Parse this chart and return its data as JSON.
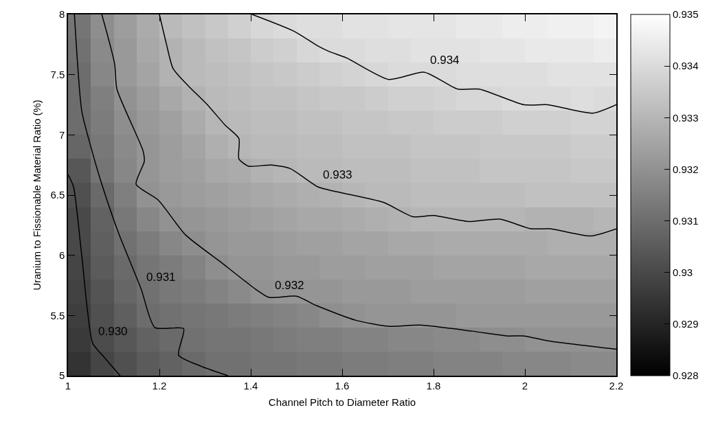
{
  "chart_data": {
    "type": "heatmap",
    "xlabel": "Channel Pitch to Diameter Ratio",
    "ylabel": "Uranium to Fissionable Material Ratio (%)",
    "x": [
      1.025,
      1.075,
      1.125,
      1.175,
      1.225,
      1.275,
      1.325,
      1.375,
      1.425,
      1.475,
      1.525,
      1.575,
      1.625,
      1.675,
      1.725,
      1.775,
      1.825,
      1.875,
      1.925,
      1.975,
      2.025,
      2.075,
      2.125,
      2.175
    ],
    "y": [
      7.9,
      7.7,
      7.5,
      7.3,
      7.1,
      6.9,
      6.7,
      6.5,
      6.3,
      6.1,
      5.9,
      5.7,
      5.5,
      5.3,
      5.1
    ],
    "cells": [
      [
        0.9312,
        0.9319,
        0.9323,
        0.9327,
        0.9331,
        0.9333,
        0.9335,
        0.9337,
        0.9339,
        0.934,
        0.9341,
        0.9341,
        0.9342,
        0.9342,
        0.9343,
        0.9343,
        0.9343,
        0.9344,
        0.9344,
        0.9345,
        0.9345,
        0.9346,
        0.9346,
        0.9347
      ],
      [
        0.9311,
        0.9318,
        0.9322,
        0.9326,
        0.9329,
        0.9331,
        0.9333,
        0.9334,
        0.9336,
        0.9337,
        0.9339,
        0.934,
        0.934,
        0.9341,
        0.9341,
        0.9342,
        0.9342,
        0.9342,
        0.9343,
        0.9343,
        0.9344,
        0.9344,
        0.9344,
        0.9345
      ],
      [
        0.931,
        0.9317,
        0.9322,
        0.9325,
        0.9329,
        0.9331,
        0.9332,
        0.9333,
        0.9334,
        0.9335,
        0.9336,
        0.9337,
        0.9338,
        0.9339,
        0.934,
        0.934,
        0.934,
        0.9341,
        0.9341,
        0.9341,
        0.9341,
        0.9342,
        0.9342,
        0.9342
      ],
      [
        0.931,
        0.9315,
        0.932,
        0.9323,
        0.9326,
        0.9329,
        0.9331,
        0.9332,
        0.9333,
        0.9333,
        0.9334,
        0.9335,
        0.9335,
        0.9336,
        0.9337,
        0.9337,
        0.9338,
        0.9339,
        0.9339,
        0.934,
        0.934,
        0.934,
        0.9341,
        0.934
      ],
      [
        0.931,
        0.9314,
        0.9319,
        0.9322,
        0.9324,
        0.9327,
        0.933,
        0.9331,
        0.9332,
        0.9332,
        0.9333,
        0.9333,
        0.9334,
        0.9334,
        0.9335,
        0.9335,
        0.9336,
        0.9336,
        0.9336,
        0.9337,
        0.9337,
        0.9337,
        0.9338,
        0.9338
      ],
      [
        0.9308,
        0.9313,
        0.9318,
        0.9321,
        0.9323,
        0.9325,
        0.9328,
        0.933,
        0.9331,
        0.9331,
        0.9332,
        0.9332,
        0.9333,
        0.9333,
        0.9333,
        0.9334,
        0.9334,
        0.9334,
        0.9335,
        0.9335,
        0.9335,
        0.9335,
        0.9336,
        0.9336
      ],
      [
        0.9304,
        0.9312,
        0.9317,
        0.9321,
        0.9323,
        0.9324,
        0.9326,
        0.9327,
        0.9329,
        0.933,
        0.9331,
        0.9331,
        0.9332,
        0.9332,
        0.9332,
        0.9333,
        0.9333,
        0.9333,
        0.9334,
        0.9334,
        0.9334,
        0.9334,
        0.9335,
        0.9335
      ],
      [
        0.9302,
        0.9309,
        0.9315,
        0.932,
        0.9322,
        0.9323,
        0.9324,
        0.9325,
        0.9326,
        0.9327,
        0.9328,
        0.9329,
        0.933,
        0.9331,
        0.9331,
        0.9332,
        0.9332,
        0.9332,
        0.9332,
        0.9332,
        0.9333,
        0.9333,
        0.9333,
        0.9333
      ],
      [
        0.93,
        0.9307,
        0.9313,
        0.9317,
        0.932,
        0.9321,
        0.9322,
        0.9323,
        0.9324,
        0.9325,
        0.9326,
        0.9326,
        0.9327,
        0.9328,
        0.9329,
        0.933,
        0.933,
        0.933,
        0.933,
        0.933,
        0.9329,
        0.9329,
        0.9329,
        0.933
      ],
      [
        0.93,
        0.9306,
        0.9311,
        0.9314,
        0.9317,
        0.9319,
        0.9321,
        0.9322,
        0.9322,
        0.9323,
        0.9324,
        0.9324,
        0.9325,
        0.9325,
        0.9326,
        0.9326,
        0.9327,
        0.9327,
        0.9327,
        0.9327,
        0.9327,
        0.9328,
        0.9328,
        0.9328
      ],
      [
        0.9299,
        0.9305,
        0.9309,
        0.9312,
        0.9314,
        0.9316,
        0.9319,
        0.9321,
        0.9321,
        0.9322,
        0.9322,
        0.9323,
        0.9323,
        0.9324,
        0.9324,
        0.9324,
        0.9325,
        0.9325,
        0.9325,
        0.9325,
        0.9326,
        0.9326,
        0.9326,
        0.9326
      ],
      [
        0.9298,
        0.9303,
        0.9308,
        0.9311,
        0.9313,
        0.9314,
        0.9316,
        0.9318,
        0.932,
        0.9321,
        0.9321,
        0.9321,
        0.9322,
        0.9322,
        0.9322,
        0.9323,
        0.9323,
        0.9323,
        0.9323,
        0.9323,
        0.9324,
        0.9324,
        0.9324,
        0.9324
      ],
      [
        0.9297,
        0.9302,
        0.9306,
        0.931,
        0.9311,
        0.9312,
        0.9313,
        0.9314,
        0.9315,
        0.9316,
        0.9317,
        0.9319,
        0.932,
        0.9321,
        0.9321,
        0.9321,
        0.9321,
        0.9322,
        0.9322,
        0.9322,
        0.9322,
        0.9322,
        0.9322,
        0.9322
      ],
      [
        0.9296,
        0.9301,
        0.9304,
        0.9307,
        0.9309,
        0.9311,
        0.9312,
        0.9312,
        0.9313,
        0.9314,
        0.9315,
        0.9315,
        0.9316,
        0.9316,
        0.9317,
        0.9317,
        0.9318,
        0.9318,
        0.9319,
        0.9319,
        0.932,
        0.932,
        0.932,
        0.932
      ],
      [
        0.9294,
        0.9299,
        0.9302,
        0.9305,
        0.9307,
        0.9309,
        0.9311,
        0.9311,
        0.9312,
        0.9312,
        0.9313,
        0.9313,
        0.9314,
        0.9314,
        0.9315,
        0.9315,
        0.9316,
        0.9316,
        0.9316,
        0.9317,
        0.9317,
        0.9317,
        0.9318,
        0.9318
      ]
    ],
    "clim": [
      0.928,
      0.935
    ],
    "cticks": [
      0.928,
      0.929,
      0.93,
      0.931,
      0.932,
      0.933,
      0.934,
      0.935
    ],
    "xlim": [
      1,
      2.2
    ],
    "xticks": [
      1,
      1.2,
      1.4,
      1.6,
      1.8,
      2,
      2.2
    ],
    "ylim": [
      5,
      8
    ],
    "yticks": [
      5,
      5.5,
      6,
      6.5,
      7,
      7.5,
      8
    ],
    "series": [
      {
        "type": "line",
        "name": "0.930",
        "color": "#000000",
        "x": [
          1.0,
          1.012,
          1.03,
          1.054,
          1.08,
          1.114
        ],
        "values": [
          6.67,
          6.57,
          6.0,
          5.27,
          5.15,
          5.0
        ]
      },
      {
        "type": "line",
        "name": "0.931",
        "color": "#000000",
        "x": [
          1.014,
          1.03,
          1.05,
          1.074,
          1.11,
          1.16,
          1.19,
          1.253,
          1.242,
          1.29,
          1.35
        ],
        "values": [
          8.0,
          7.2,
          6.9,
          6.59,
          6.19,
          5.72,
          5.4,
          5.39,
          5.17,
          5.08,
          5.0
        ]
      },
      {
        "type": "line",
        "name": "0.932",
        "color": "#000000",
        "x": [
          1.074,
          1.102,
          1.107,
          1.164,
          1.167,
          1.149,
          1.197,
          1.257,
          1.332,
          1.41,
          1.44,
          1.5,
          1.545,
          1.63,
          1.702,
          1.77,
          1.884,
          1.962,
          1.998,
          2.05,
          2.2
        ],
        "values": [
          8.0,
          7.59,
          7.38,
          6.87,
          6.78,
          6.59,
          6.46,
          6.17,
          5.95,
          5.72,
          5.65,
          5.66,
          5.58,
          5.46,
          5.41,
          5.42,
          5.37,
          5.33,
          5.33,
          5.29,
          5.22
        ]
      },
      {
        "type": "line",
        "name": "0.933",
        "color": "#000000",
        "x": [
          1.2,
          1.215,
          1.23,
          1.265,
          1.305,
          1.344,
          1.374,
          1.374,
          1.395,
          1.445,
          1.486,
          1.546,
          1.573,
          1.69,
          1.755,
          1.8,
          1.878,
          1.945,
          2.013,
          2.055,
          2.143,
          2.2
        ],
        "values": [
          8.0,
          7.76,
          7.55,
          7.4,
          7.25,
          7.08,
          6.97,
          6.8,
          6.74,
          6.75,
          6.72,
          6.57,
          6.54,
          6.44,
          6.32,
          6.33,
          6.28,
          6.3,
          6.22,
          6.22,
          6.16,
          6.22
        ]
      },
      {
        "type": "line",
        "name": "0.934",
        "color": "#000000",
        "x": [
          1.403,
          1.495,
          1.546,
          1.573,
          1.609,
          1.702,
          1.78,
          1.853,
          1.9,
          1.998,
          2.05,
          2.149,
          2.2
        ],
        "values": [
          8.0,
          7.86,
          7.74,
          7.69,
          7.64,
          7.46,
          7.52,
          7.38,
          7.38,
          7.25,
          7.25,
          7.18,
          7.25
        ]
      }
    ]
  }
}
